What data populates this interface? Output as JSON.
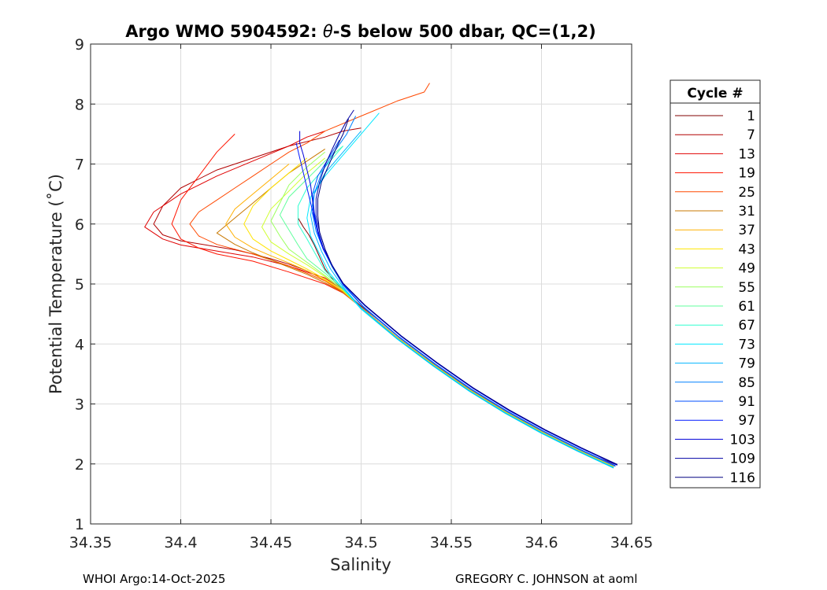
{
  "chart_data": {
    "type": "line",
    "title": "Argo WMO 5904592: θ-S below 500 dbar,  QC=(1,2)",
    "title_parts": {
      "prefix": "Argo WMO 5904592: ",
      "theta": "θ",
      "suffix": "-S below 500 dbar,  QC=(1,2)"
    },
    "xlabel": "Salinity",
    "ylabel": "Potential Temperature (˚C)",
    "xlim": [
      34.35,
      34.65
    ],
    "ylim": [
      1,
      9
    ],
    "xticks": [
      34.35,
      34.4,
      34.45,
      34.5,
      34.55,
      34.6,
      34.65
    ],
    "xtick_labels": [
      "34.35",
      "34.4",
      "34.45",
      "34.5",
      "34.55",
      "34.6",
      "34.65"
    ],
    "yticks": [
      1,
      2,
      3,
      4,
      5,
      6,
      7,
      8,
      9
    ],
    "ytick_labels": [
      "1",
      "2",
      "3",
      "4",
      "5",
      "6",
      "7",
      "8",
      "9"
    ],
    "grid": true,
    "legend_position": "right-outside",
    "legend": {
      "title": "Cycle #",
      "entries": [
        {
          "label": "1",
          "color": "#800000"
        },
        {
          "label": "7",
          "color": "#b00000"
        },
        {
          "label": "13",
          "color": "#e00000"
        },
        {
          "label": "19",
          "color": "#ff1400"
        },
        {
          "label": "25",
          "color": "#ff4800"
        },
        {
          "label": "31",
          "color": "#c87800"
        },
        {
          "label": "37",
          "color": "#ffb000"
        },
        {
          "label": "43",
          "color": "#ffe400"
        },
        {
          "label": "49",
          "color": "#d0ff30"
        },
        {
          "label": "55",
          "color": "#9cff60"
        },
        {
          "label": "61",
          "color": "#60ff9c"
        },
        {
          "label": "67",
          "color": "#30ffd0"
        },
        {
          "label": "73",
          "color": "#00e8ff"
        },
        {
          "label": "79",
          "color": "#00b4ff"
        },
        {
          "label": "85",
          "color": "#0080ff"
        },
        {
          "label": "91",
          "color": "#004cff"
        },
        {
          "label": "97",
          "color": "#0018ff"
        },
        {
          "label": "103",
          "color": "#0000d8"
        },
        {
          "label": "109",
          "color": "#0000a4"
        },
        {
          "label": "116",
          "color": "#000080"
        }
      ]
    },
    "series": [
      {
        "name": "1",
        "x": [
          34.642,
          34.63,
          34.62,
          34.61,
          34.6,
          34.59,
          34.58,
          34.57,
          34.56,
          34.55,
          34.54,
          34.53,
          34.52,
          34.51,
          34.5,
          34.49,
          34.485,
          34.48,
          34.477,
          34.474,
          34.471,
          34.468,
          34.465
        ],
        "y": [
          1.98,
          2.12,
          2.26,
          2.41,
          2.56,
          2.72,
          2.89,
          3.07,
          3.26,
          3.46,
          3.68,
          3.91,
          4.14,
          4.39,
          4.63,
          4.9,
          5.05,
          5.25,
          5.45,
          5.65,
          5.82,
          5.95,
          6.1
        ]
      },
      {
        "name": "7",
        "x": [
          34.64,
          34.62,
          34.6,
          34.58,
          34.56,
          34.54,
          34.52,
          34.5,
          34.49,
          34.48,
          34.47,
          34.46,
          34.45,
          34.44,
          34.43,
          34.42,
          34.41,
          34.4,
          34.39,
          34.385,
          34.39,
          34.4,
          34.42,
          34.44,
          34.46,
          34.48,
          34.49,
          34.5
        ],
        "y": [
          1.96,
          2.24,
          2.54,
          2.87,
          3.24,
          3.66,
          4.11,
          4.61,
          4.87,
          5.06,
          5.22,
          5.33,
          5.42,
          5.5,
          5.57,
          5.62,
          5.67,
          5.72,
          5.82,
          6.0,
          6.3,
          6.6,
          6.9,
          7.1,
          7.3,
          7.45,
          7.55,
          7.6
        ]
      },
      {
        "name": "13",
        "x": [
          34.64,
          34.62,
          34.6,
          34.58,
          34.56,
          34.54,
          34.52,
          34.5,
          34.49,
          34.48,
          34.46,
          34.44,
          34.42,
          34.4,
          34.39,
          34.38,
          34.385,
          34.4,
          34.42,
          34.44,
          34.46,
          34.47,
          34.48
        ],
        "y": [
          1.96,
          2.24,
          2.54,
          2.87,
          3.24,
          3.66,
          4.11,
          4.61,
          4.9,
          5.1,
          5.3,
          5.45,
          5.55,
          5.65,
          5.75,
          5.95,
          6.2,
          6.5,
          6.8,
          7.05,
          7.3,
          7.45,
          7.55
        ]
      },
      {
        "name": "19",
        "x": [
          34.64,
          34.62,
          34.6,
          34.58,
          34.56,
          34.54,
          34.52,
          34.5,
          34.49,
          34.48,
          34.46,
          34.44,
          34.42,
          34.41,
          34.4,
          34.395,
          34.4,
          34.41,
          34.42,
          34.43
        ],
        "y": [
          1.96,
          2.24,
          2.54,
          2.87,
          3.24,
          3.66,
          4.11,
          4.61,
          4.85,
          5.0,
          5.2,
          5.38,
          5.5,
          5.6,
          5.75,
          6.0,
          6.4,
          6.8,
          7.2,
          7.5
        ]
      },
      {
        "name": "25",
        "x": [
          34.64,
          34.62,
          34.6,
          34.58,
          34.56,
          34.54,
          34.52,
          34.5,
          34.49,
          34.48,
          34.47,
          34.46,
          34.45,
          34.44,
          34.43,
          34.42,
          34.41,
          34.405,
          34.41,
          34.42,
          34.43,
          34.44,
          34.45,
          34.46,
          34.47,
          34.48,
          34.5,
          34.52,
          34.535,
          34.538
        ],
        "y": [
          1.96,
          2.24,
          2.54,
          2.87,
          3.24,
          3.66,
          4.11,
          4.61,
          4.86,
          5.05,
          5.18,
          5.3,
          5.4,
          5.5,
          5.58,
          5.66,
          5.8,
          6.0,
          6.2,
          6.4,
          6.6,
          6.8,
          7.0,
          7.2,
          7.35,
          7.55,
          7.8,
          8.05,
          8.2,
          8.35
        ]
      },
      {
        "name": "31",
        "x": [
          34.64,
          34.62,
          34.6,
          34.58,
          34.56,
          34.54,
          34.52,
          34.5,
          34.49,
          34.48,
          34.47,
          34.46,
          34.45,
          34.44,
          34.43,
          34.42,
          34.43,
          34.44,
          34.45,
          34.46,
          34.47,
          34.48
        ],
        "y": [
          1.96,
          2.24,
          2.54,
          2.87,
          3.24,
          3.66,
          4.11,
          4.61,
          4.86,
          5.02,
          5.16,
          5.28,
          5.4,
          5.52,
          5.66,
          5.85,
          6.1,
          6.35,
          6.6,
          6.85,
          7.05,
          7.25
        ]
      },
      {
        "name": "37",
        "x": [
          34.64,
          34.62,
          34.6,
          34.58,
          34.56,
          34.54,
          34.52,
          34.5,
          34.49,
          34.48,
          34.47,
          34.46,
          34.45,
          34.44,
          34.43,
          34.425,
          34.43,
          34.44,
          34.45,
          34.46
        ],
        "y": [
          1.96,
          2.24,
          2.54,
          2.87,
          3.24,
          3.66,
          4.11,
          4.61,
          4.88,
          5.06,
          5.22,
          5.35,
          5.47,
          5.6,
          5.78,
          6.0,
          6.25,
          6.5,
          6.75,
          7.0
        ]
      },
      {
        "name": "43",
        "x": [
          34.64,
          34.62,
          34.6,
          34.58,
          34.56,
          34.54,
          34.52,
          34.5,
          34.49,
          34.48,
          34.47,
          34.46,
          34.45,
          34.44,
          34.435,
          34.44,
          34.45,
          34.46,
          34.47
        ],
        "y": [
          1.95,
          2.23,
          2.53,
          2.86,
          3.23,
          3.65,
          4.1,
          4.6,
          4.88,
          5.08,
          5.25,
          5.4,
          5.55,
          5.75,
          6.0,
          6.3,
          6.6,
          6.85,
          7.1
        ]
      },
      {
        "name": "49",
        "x": [
          34.64,
          34.62,
          34.6,
          34.58,
          34.56,
          34.54,
          34.52,
          34.5,
          34.49,
          34.48,
          34.47,
          34.46,
          34.45,
          34.445,
          34.45,
          34.46,
          34.47,
          34.48
        ],
        "y": [
          1.95,
          2.23,
          2.53,
          2.86,
          3.23,
          3.65,
          4.1,
          4.6,
          4.9,
          5.12,
          5.32,
          5.5,
          5.7,
          5.95,
          6.25,
          6.55,
          6.85,
          7.1
        ]
      },
      {
        "name": "55",
        "x": [
          34.64,
          34.62,
          34.6,
          34.58,
          34.56,
          34.54,
          34.52,
          34.5,
          34.49,
          34.48,
          34.47,
          34.46,
          34.455,
          34.45,
          34.455,
          34.46,
          34.47,
          34.48
        ],
        "y": [
          1.94,
          2.22,
          2.52,
          2.85,
          3.22,
          3.64,
          4.09,
          4.6,
          4.9,
          5.14,
          5.36,
          5.58,
          5.8,
          6.05,
          6.35,
          6.65,
          6.95,
          7.2
        ]
      },
      {
        "name": "61",
        "x": [
          34.64,
          34.62,
          34.6,
          34.58,
          34.56,
          34.54,
          34.52,
          34.5,
          34.49,
          34.48,
          34.47,
          34.465,
          34.46,
          34.455,
          34.46,
          34.47,
          34.48,
          34.49
        ],
        "y": [
          1.94,
          2.22,
          2.52,
          2.85,
          3.22,
          3.64,
          4.09,
          4.6,
          4.92,
          5.18,
          5.42,
          5.65,
          5.9,
          6.15,
          6.45,
          6.75,
          7.05,
          7.3
        ]
      },
      {
        "name": "67",
        "x": [
          34.64,
          34.62,
          34.6,
          34.58,
          34.56,
          34.54,
          34.52,
          34.5,
          34.49,
          34.48,
          34.475,
          34.47,
          34.465,
          34.465,
          34.47,
          34.48,
          34.49
        ],
        "y": [
          1.94,
          2.22,
          2.52,
          2.85,
          3.22,
          3.64,
          4.09,
          4.6,
          4.93,
          5.22,
          5.48,
          5.75,
          6.0,
          6.3,
          6.6,
          6.95,
          7.3
        ]
      },
      {
        "name": "73",
        "x": [
          34.64,
          34.62,
          34.6,
          34.58,
          34.56,
          34.54,
          34.52,
          34.5,
          34.49,
          34.482,
          34.477,
          34.472,
          34.47,
          34.472,
          34.48,
          34.49,
          34.5,
          34.51
        ],
        "y": [
          1.93,
          2.21,
          2.51,
          2.84,
          3.21,
          3.63,
          4.08,
          4.58,
          4.92,
          5.2,
          5.5,
          5.8,
          6.1,
          6.45,
          6.8,
          7.15,
          7.5,
          7.85
        ]
      },
      {
        "name": "79",
        "x": [
          34.64,
          34.62,
          34.6,
          34.58,
          34.56,
          34.54,
          34.52,
          34.5,
          34.49,
          34.483,
          34.478,
          34.474,
          34.472,
          34.474,
          34.48,
          34.49,
          34.5
        ],
        "y": [
          1.94,
          2.22,
          2.52,
          2.85,
          3.22,
          3.64,
          4.09,
          4.6,
          4.95,
          5.25,
          5.55,
          5.85,
          6.15,
          6.5,
          6.85,
          7.2,
          7.55
        ]
      },
      {
        "name": "85",
        "x": [
          34.641,
          34.621,
          34.601,
          34.581,
          34.561,
          34.541,
          34.521,
          34.501,
          34.49,
          34.484,
          34.479,
          34.475,
          34.473,
          34.474,
          34.478,
          34.485,
          34.492,
          34.497
        ],
        "y": [
          1.96,
          2.24,
          2.54,
          2.87,
          3.24,
          3.66,
          4.11,
          4.62,
          4.98,
          5.28,
          5.58,
          5.88,
          6.18,
          6.5,
          6.85,
          7.2,
          7.5,
          7.8
        ]
      },
      {
        "name": "91",
        "x": [
          34.641,
          34.621,
          34.601,
          34.581,
          34.561,
          34.541,
          34.521,
          34.501,
          34.49,
          34.484,
          34.479,
          34.476,
          34.474,
          34.473,
          34.476,
          34.482,
          34.488
        ],
        "y": [
          1.97,
          2.25,
          2.55,
          2.88,
          3.25,
          3.67,
          4.12,
          4.63,
          4.99,
          5.3,
          5.6,
          5.9,
          6.2,
          6.5,
          6.8,
          7.1,
          7.4
        ]
      },
      {
        "name": "97",
        "x": [
          34.642,
          34.622,
          34.602,
          34.582,
          34.562,
          34.542,
          34.522,
          34.502,
          34.49,
          34.484,
          34.479,
          34.476,
          34.474,
          34.472,
          34.47,
          34.468,
          34.466,
          34.464
        ],
        "y": [
          1.98,
          2.26,
          2.56,
          2.89,
          3.26,
          3.68,
          4.13,
          4.64,
          5.0,
          5.3,
          5.58,
          5.85,
          6.1,
          6.35,
          6.6,
          6.85,
          7.1,
          7.35
        ]
      },
      {
        "name": "103",
        "x": [
          34.642,
          34.622,
          34.602,
          34.582,
          34.562,
          34.542,
          34.522,
          34.502,
          34.49,
          34.484,
          34.479,
          34.476,
          34.474,
          34.473,
          34.472,
          34.47,
          34.468,
          34.466,
          34.466
        ],
        "y": [
          1.99,
          2.27,
          2.57,
          2.9,
          3.27,
          3.69,
          4.14,
          4.65,
          5.01,
          5.31,
          5.6,
          5.88,
          6.15,
          6.4,
          6.65,
          6.9,
          7.15,
          7.35,
          7.55
        ]
      },
      {
        "name": "109",
        "x": [
          34.642,
          34.622,
          34.602,
          34.582,
          34.562,
          34.542,
          34.522,
          34.502,
          34.49,
          34.484,
          34.48,
          34.477,
          34.475,
          34.475,
          34.477,
          34.48,
          34.484,
          34.488,
          34.492,
          34.496
        ],
        "y": [
          1.99,
          2.27,
          2.57,
          2.9,
          3.27,
          3.69,
          4.14,
          4.65,
          5.01,
          5.3,
          5.58,
          5.86,
          6.14,
          6.42,
          6.7,
          6.98,
          7.25,
          7.5,
          7.72,
          7.9
        ]
      },
      {
        "name": "116",
        "x": [
          34.642,
          34.622,
          34.602,
          34.582,
          34.562,
          34.542,
          34.522,
          34.502,
          34.49,
          34.484,
          34.48,
          34.477,
          34.476,
          34.476,
          34.478,
          34.482,
          34.486,
          34.49,
          34.493
        ],
        "y": [
          1.99,
          2.27,
          2.57,
          2.9,
          3.27,
          3.69,
          4.14,
          4.65,
          5.01,
          5.3,
          5.58,
          5.86,
          6.14,
          6.42,
          6.7,
          6.98,
          7.25,
          7.5,
          7.75
        ]
      }
    ]
  },
  "footer": {
    "left": "WHOI Argo:14-Oct-2025",
    "right": "GREGORY C. JOHNSON at aoml"
  }
}
